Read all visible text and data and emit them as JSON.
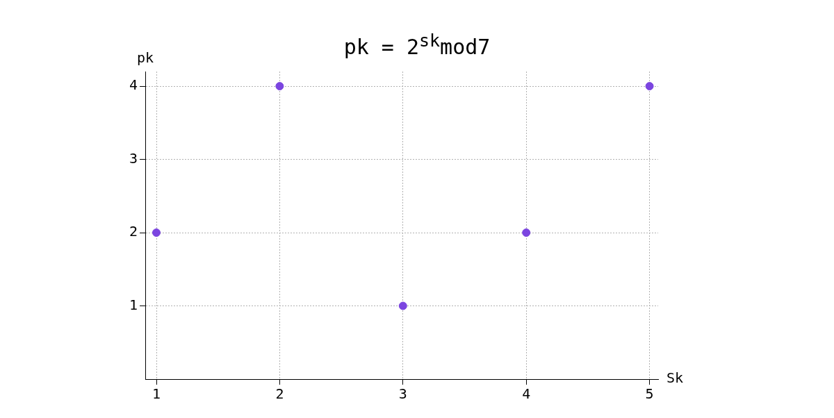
{
  "chart_data": {
    "type": "scatter",
    "title": "pk = 2$^{sk}$mod7",
    "xlabel": "Sk",
    "ylabel": "pk",
    "x": [
      1,
      2,
      3,
      4,
      5
    ],
    "series": [
      {
        "color": "#7b45e0",
        "values": [
          2,
          4,
          1,
          2,
          4
        ]
      }
    ],
    "xlim": [
      0.91,
      5.07
    ],
    "ylim": [
      0,
      4.2
    ],
    "xticks": [
      1,
      2,
      3,
      4,
      5
    ],
    "yticks": [
      1,
      2,
      3,
      4
    ],
    "grid": true,
    "legend": false,
    "marker": "circle"
  }
}
